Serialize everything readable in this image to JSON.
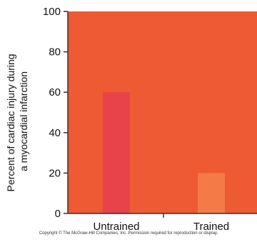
{
  "chart_data": {
    "type": "bar",
    "categories": [
      "Untrained",
      "Trained"
    ],
    "values": [
      60,
      20
    ],
    "ylabel_lines": [
      "Percent of cardiac injury during",
      "a myocardial infarction"
    ],
    "xlabel": "",
    "ylim": [
      0,
      100
    ],
    "yticks": [
      0,
      20,
      40,
      60,
      80,
      100
    ],
    "grid": false,
    "colors": {
      "plot_background": "#ee5a33",
      "bars": [
        "#e8434b",
        "#f47a48"
      ],
      "axis": "#333333"
    }
  },
  "footer": {
    "copyright": "Copyright © The McGraw-Hill Companies, Inc. Permission required for reproduction or display."
  }
}
